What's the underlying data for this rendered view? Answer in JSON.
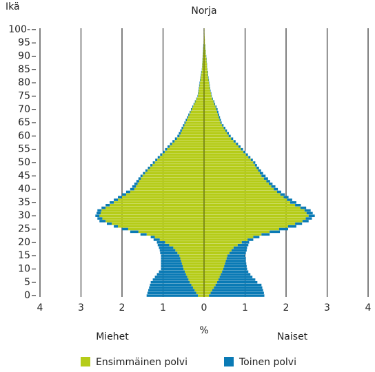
{
  "chart_data": {
    "type": "pyramid",
    "title": "Norja",
    "ylabel": "Ikä",
    "xlabel": "%",
    "left_label": "Miehet",
    "right_label": "Naiset",
    "xlim": [
      -4,
      4
    ],
    "xticks": [
      {
        "value": -4,
        "label": "4"
      },
      {
        "value": -3,
        "label": "3"
      },
      {
        "value": -2,
        "label": "2"
      },
      {
        "value": -1,
        "label": "1"
      },
      0,
      1,
      2,
      3,
      4
    ],
    "ylim": [
      -0.5,
      100.5
    ],
    "yticks": [
      0,
      5,
      10,
      15,
      20,
      25,
      30,
      35,
      40,
      45,
      50,
      55,
      60,
      65,
      70,
      75,
      80,
      85,
      90,
      95,
      {
        "value": 100,
        "label": "100-"
      }
    ],
    "ages": [
      0,
      1,
      2,
      3,
      4,
      5,
      6,
      7,
      8,
      9,
      10,
      11,
      12,
      13,
      14,
      15,
      16,
      17,
      18,
      19,
      20,
      21,
      22,
      23,
      24,
      25,
      26,
      27,
      28,
      29,
      30,
      31,
      32,
      33,
      34,
      35,
      36,
      37,
      38,
      39,
      40,
      41,
      42,
      43,
      44,
      45,
      46,
      47,
      48,
      49,
      50,
      51,
      52,
      53,
      54,
      55,
      56,
      57,
      58,
      59,
      60,
      61,
      62,
      63,
      64,
      65,
      66,
      67,
      68,
      69,
      70,
      71,
      72,
      73,
      74,
      75,
      76,
      77,
      78,
      79,
      80,
      81,
      82,
      83,
      84,
      85,
      86,
      87,
      88,
      89,
      90,
      91,
      92,
      93,
      94,
      95,
      96,
      97,
      98,
      99,
      100
    ],
    "series": [
      {
        "name": "Ensimmäinen polvi",
        "color": "#b5cc18",
        "men": [
          0.15,
          0.19,
          0.23,
          0.27,
          0.31,
          0.35,
          0.38,
          0.41,
          0.44,
          0.47,
          0.5,
          0.52,
          0.54,
          0.56,
          0.58,
          0.6,
          0.65,
          0.7,
          0.75,
          0.85,
          0.95,
          1.08,
          1.2,
          1.4,
          1.6,
          1.85,
          2.1,
          2.25,
          2.4,
          2.48,
          2.55,
          2.52,
          2.5,
          2.4,
          2.3,
          2.2,
          2.1,
          2.0,
          1.9,
          1.8,
          1.7,
          1.66,
          1.62,
          1.58,
          1.54,
          1.5,
          1.44,
          1.38,
          1.32,
          1.26,
          1.2,
          1.14,
          1.08,
          1.02,
          0.96,
          0.9,
          0.84,
          0.78,
          0.72,
          0.66,
          0.6,
          0.57,
          0.54,
          0.51,
          0.48,
          0.45,
          0.42,
          0.39,
          0.36,
          0.33,
          0.3,
          0.27,
          0.24,
          0.21,
          0.18,
          0.15,
          0.14,
          0.13,
          0.12,
          0.11,
          0.1,
          0.09,
          0.08,
          0.07,
          0.06,
          0.05,
          0.046,
          0.042,
          0.038,
          0.034,
          0.03,
          0.026,
          0.022,
          0.018,
          0.014,
          0.01,
          0.009,
          0.008,
          0.007,
          0.006,
          0.005
        ],
        "women": [
          0.12,
          0.16,
          0.2,
          0.24,
          0.28,
          0.32,
          0.35,
          0.38,
          0.41,
          0.44,
          0.47,
          0.49,
          0.51,
          0.53,
          0.55,
          0.57,
          0.62,
          0.67,
          0.72,
          0.82,
          0.92,
          1.06,
          1.2,
          1.4,
          1.6,
          1.83,
          2.05,
          2.22,
          2.4,
          2.48,
          2.55,
          2.5,
          2.45,
          2.35,
          2.22,
          2.1,
          2.02,
          1.94,
          1.86,
          1.78,
          1.7,
          1.64,
          1.58,
          1.52,
          1.46,
          1.4,
          1.36,
          1.32,
          1.28,
          1.24,
          1.2,
          1.14,
          1.08,
          1.02,
          0.96,
          0.9,
          0.84,
          0.78,
          0.72,
          0.66,
          0.6,
          0.56,
          0.52,
          0.48,
          0.44,
          0.4,
          0.38,
          0.36,
          0.34,
          0.32,
          0.3,
          0.28,
          0.25,
          0.23,
          0.2,
          0.18,
          0.17,
          0.15,
          0.14,
          0.13,
          0.12,
          0.11,
          0.1,
          0.09,
          0.09,
          0.08,
          0.07,
          0.07,
          0.06,
          0.06,
          0.05,
          0.04,
          0.04,
          0.03,
          0.03,
          0.02,
          0.02,
          0.015,
          0.012,
          0.01,
          0.01
        ]
      },
      {
        "name": "Toinen polvi",
        "color": "#0a7ab5",
        "men": [
          1.25,
          1.19,
          1.13,
          1.07,
          1.01,
          0.95,
          0.87,
          0.79,
          0.71,
          0.63,
          0.55,
          0.53,
          0.51,
          0.49,
          0.47,
          0.45,
          0.42,
          0.38,
          0.35,
          0.28,
          0.2,
          0.15,
          0.1,
          0.15,
          0.2,
          0.15,
          0.1,
          0.12,
          0.15,
          0.12,
          0.1,
          0.1,
          0.1,
          0.1,
          0.1,
          0.1,
          0.1,
          0.1,
          0.1,
          0.1,
          0.1,
          0.09,
          0.08,
          0.07,
          0.06,
          0.05,
          0.05,
          0.05,
          0.05,
          0.05,
          0.05,
          0.05,
          0.05,
          0.05,
          0.05,
          0.05,
          0.05,
          0.05,
          0.05,
          0.05,
          0.05,
          0.046,
          0.042,
          0.038,
          0.034,
          0.03,
          0.028,
          0.026,
          0.024,
          0.022,
          0.02,
          0.018,
          0.016,
          0.014,
          0.012,
          0.01,
          0.01,
          0.01,
          0.01,
          0.01,
          0.01,
          0.01,
          0.01,
          0.01,
          0.01,
          0.005,
          0.005,
          0.005,
          0.005,
          0.005,
          0.005,
          0.005,
          0.005,
          0.005,
          0.005,
          0,
          0,
          0,
          0,
          0,
          0
        ],
        "women": [
          1.35,
          1.3,
          1.24,
          1.18,
          1.12,
          0.98,
          0.9,
          0.8,
          0.72,
          0.64,
          0.58,
          0.55,
          0.52,
          0.49,
          0.47,
          0.43,
          0.4,
          0.37,
          0.33,
          0.26,
          0.18,
          0.14,
          0.15,
          0.2,
          0.25,
          0.22,
          0.2,
          0.17,
          0.15,
          0.15,
          0.15,
          0.15,
          0.15,
          0.14,
          0.14,
          0.15,
          0.13,
          0.12,
          0.11,
          0.1,
          0.1,
          0.1,
          0.09,
          0.09,
          0.1,
          0.1,
          0.08,
          0.07,
          0.06,
          0.05,
          0.05,
          0.05,
          0.05,
          0.05,
          0.05,
          0.05,
          0.05,
          0.05,
          0.05,
          0.05,
          0.05,
          0.045,
          0.04,
          0.04,
          0.035,
          0.03,
          0.03,
          0.03,
          0.03,
          0.03,
          0.03,
          0.025,
          0.02,
          0.02,
          0.015,
          0.01,
          0.01,
          0.01,
          0.01,
          0.01,
          0.01,
          0.01,
          0.01,
          0.01,
          0.01,
          0.005,
          0.005,
          0.005,
          0.005,
          0.005,
          0.005,
          0.005,
          0.005,
          0.005,
          0.005,
          0,
          0,
          0,
          0,
          0,
          0
        ]
      }
    ]
  }
}
